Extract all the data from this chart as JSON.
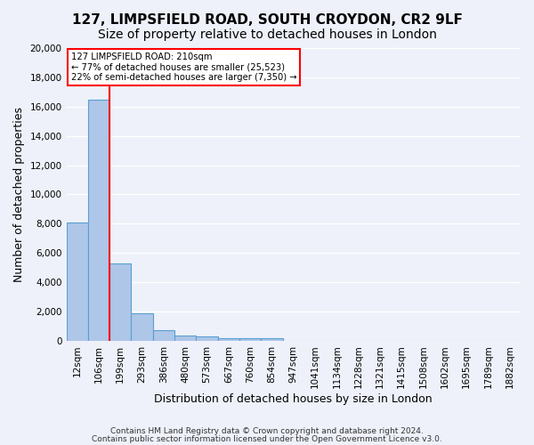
{
  "title": "127, LIMPSFIELD ROAD, SOUTH CROYDON, CR2 9LF",
  "subtitle": "Size of property relative to detached houses in London",
  "xlabel": "Distribution of detached houses by size in London",
  "ylabel": "Number of detached properties",
  "footer_line1": "Contains HM Land Registry data © Crown copyright and database right 2024.",
  "footer_line2": "Contains public sector information licensed under the Open Government Licence v3.0.",
  "bin_labels": [
    "12sqm",
    "106sqm",
    "199sqm",
    "293sqm",
    "386sqm",
    "480sqm",
    "573sqm",
    "667sqm",
    "760sqm",
    "854sqm",
    "947sqm",
    "1041sqm",
    "1134sqm",
    "1228sqm",
    "1321sqm",
    "1415sqm",
    "1508sqm",
    "1602sqm",
    "1695sqm",
    "1789sqm",
    "1882sqm"
  ],
  "bar_values": [
    8100,
    16500,
    5300,
    1850,
    700,
    380,
    270,
    200,
    170,
    150,
    0,
    0,
    0,
    0,
    0,
    0,
    0,
    0,
    0,
    0,
    0
  ],
  "bar_color": "#aec6e8",
  "bar_edge_color": "#5a9fd4",
  "vline_x": 1.5,
  "annotation_text_line1": "127 LIMPSFIELD ROAD: 210sqm",
  "annotation_text_line2": "← 77% of detached houses are smaller (25,523)",
  "annotation_text_line3": "22% of semi-detached houses are larger (7,350) →",
  "annotation_box_color": "white",
  "annotation_box_edge_color": "red",
  "vline_color": "red",
  "ylim": [
    0,
    20000
  ],
  "yticks": [
    0,
    2000,
    4000,
    6000,
    8000,
    10000,
    12000,
    14000,
    16000,
    18000,
    20000
  ],
  "bg_color": "#eef1fa",
  "grid_color": "white",
  "title_fontsize": 11,
  "subtitle_fontsize": 10,
  "axis_label_fontsize": 9,
  "tick_fontsize": 7.5
}
